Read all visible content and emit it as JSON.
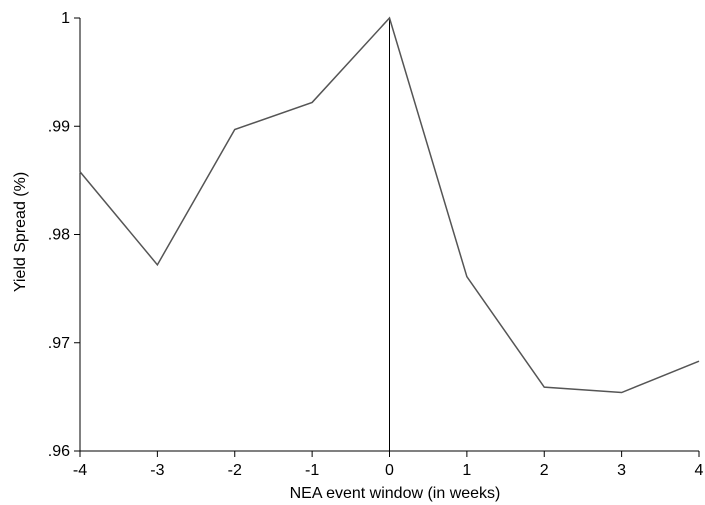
{
  "chart_data": {
    "type": "line",
    "title": "",
    "xlabel": "NEA event window (in weeks)",
    "ylabel": "Yield Spread (%)",
    "x": [
      -4,
      -3,
      -2,
      -1,
      0,
      1,
      2,
      3,
      4
    ],
    "x_ticks": [
      "-4",
      "-3",
      "-2",
      "-1",
      "0",
      "1",
      "2",
      "3",
      "4"
    ],
    "y_ticks": [
      ".96",
      ".97",
      ".98",
      ".99",
      "1"
    ],
    "y_tick_values": [
      0.96,
      0.97,
      0.98,
      0.99,
      1.0
    ],
    "series": [
      {
        "values": [
          0.9858,
          0.9772,
          0.9897,
          0.9922,
          1.0,
          0.9761,
          0.9659,
          0.9654,
          0.9683
        ]
      }
    ],
    "vline_x": 0,
    "xlim": [
      -4,
      4
    ],
    "ylim": [
      0.96,
      1.0
    ],
    "grid": false,
    "colors": {
      "line": "#555555",
      "vline": "#000000",
      "axis": "#000000"
    }
  }
}
